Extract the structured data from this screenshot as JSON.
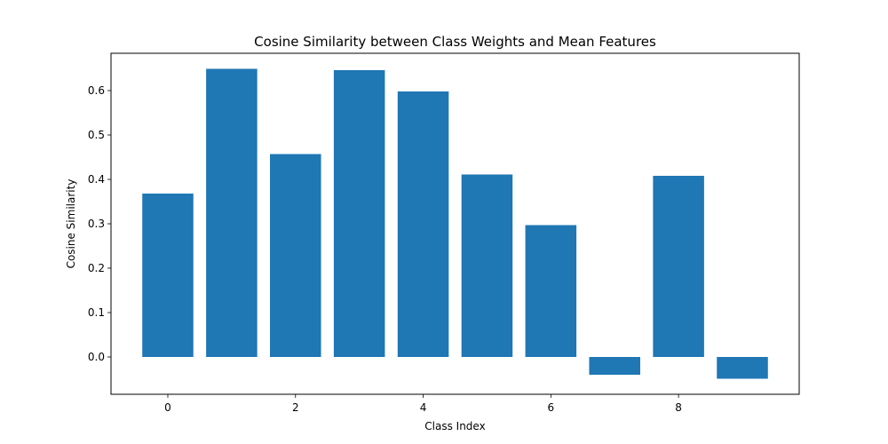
{
  "chart_data": {
    "type": "bar",
    "title": "Cosine Similarity between Class Weights and Mean Features",
    "xlabel": "Class Index",
    "ylabel": "Cosine Similarity",
    "categories": [
      0,
      1,
      2,
      3,
      4,
      5,
      6,
      7,
      8,
      9
    ],
    "values": [
      0.368,
      0.649,
      0.457,
      0.646,
      0.598,
      0.411,
      0.297,
      -0.04,
      0.408,
      -0.049
    ],
    "xlim": [
      -0.89,
      9.89
    ],
    "ylim": [
      -0.084,
      0.684
    ],
    "xticks": [
      0,
      2,
      4,
      6,
      8
    ],
    "yticks": [
      0.0,
      0.1,
      0.2,
      0.3,
      0.4,
      0.5,
      0.6
    ],
    "ytick_labels": [
      "0.0",
      "0.1",
      "0.2",
      "0.3",
      "0.4",
      "0.5",
      "0.6"
    ],
    "bar_color": "#1f77b4",
    "grid": false,
    "legend": null
  }
}
